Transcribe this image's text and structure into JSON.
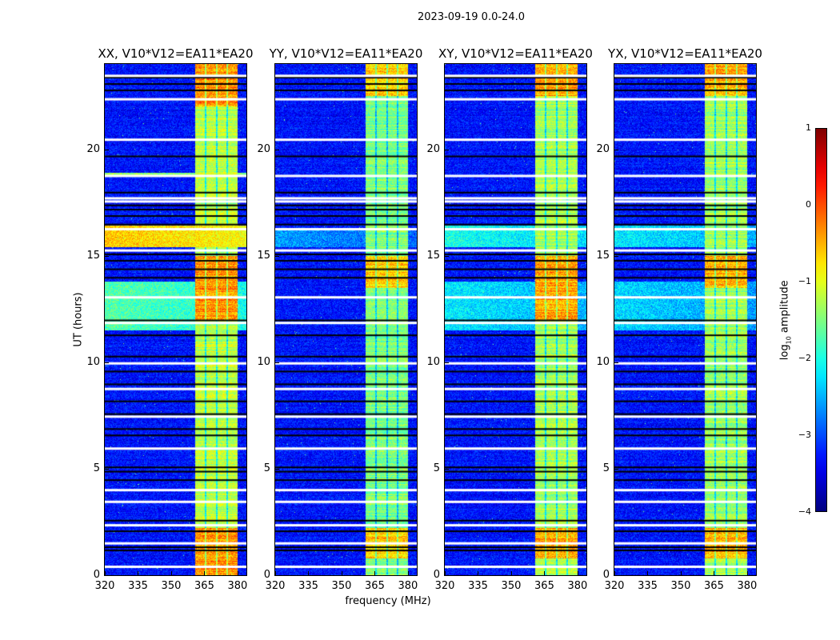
{
  "chart_data": {
    "type": "heatmap",
    "title": "2023-09-19 0.0-24.0",
    "xlabel": "frequency (MHz)",
    "ylabel": "UT (hours)",
    "xlim": [
      320,
      384
    ],
    "ylim": [
      0,
      24
    ],
    "xticks": [
      "320",
      "335",
      "350",
      "365",
      "380"
    ],
    "xtick_values": [
      320,
      335,
      350,
      365,
      380
    ],
    "yticks": [
      "0",
      "5",
      "10",
      "15",
      "20"
    ],
    "ytick_values": [
      0,
      5,
      10,
      15,
      20
    ],
    "colormap": "jet",
    "colorbar": {
      "label_main": "log",
      "label_sub": "10",
      "label_rest": " amplitude",
      "range": [
        -4,
        1
      ],
      "ticks": [
        "1",
        "0",
        "−1",
        "−2",
        "−3",
        "−4"
      ],
      "tick_values": [
        1,
        0,
        -1,
        -2,
        -3,
        -4
      ]
    },
    "background_level": -3.3,
    "band": {
      "start_mhz": 361,
      "end_mhz": 380,
      "gaps_mhz": [
        365.6,
        370.6,
        375.3
      ]
    },
    "flagged_white_hours": [
      0.45,
      1.55,
      2.4,
      3.5,
      4.05,
      6.0,
      7.5,
      8.8,
      10.0,
      11.9,
      13.1,
      15.3,
      16.3,
      17.6,
      17.75,
      18.8,
      20.5,
      22.4,
      23.5
    ],
    "flagged_black_hours": [
      1.2,
      1.35,
      2.1,
      2.6,
      4.5,
      4.9,
      5.1,
      6.6,
      6.9,
      7.6,
      8.2,
      9.0,
      9.6,
      10.3,
      11.3,
      12.0,
      14.0,
      14.4,
      14.8,
      15.1,
      16.5,
      16.9,
      17.2,
      17.4,
      18.0,
      19.7,
      22.8,
      23.1,
      23.4
    ],
    "panels": [
      {
        "title": "XX, V10*V12=EA11*EA20",
        "band_level": -1.2,
        "bright_hours": [
          [
            0,
            2.2
          ],
          [
            12,
            15
          ],
          [
            22,
            24
          ]
        ],
        "rfi": [
          [
            15.4,
            16.4,
            -0.6
          ],
          [
            11.5,
            13.8,
            -1.7
          ],
          [
            18.75,
            18.9,
            -1.3
          ]
        ]
      },
      {
        "title": "YY, V10*V12=EA11*EA20",
        "band_level": -1.5,
        "bright_hours": [
          [
            0.8,
            2.2
          ],
          [
            13.5,
            15
          ],
          [
            22.5,
            24
          ]
        ],
        "rfi": [
          [
            15.4,
            16.2,
            -2.6
          ]
        ]
      },
      {
        "title": "XY, V10*V12=EA11*EA20",
        "band_level": -1.3,
        "bright_hours": [
          [
            0.8,
            2.2
          ],
          [
            12,
            15
          ],
          [
            22.5,
            24
          ]
        ],
        "rfi": [
          [
            15.4,
            16.4,
            -2.0
          ],
          [
            11.5,
            13.8,
            -2.2
          ]
        ]
      },
      {
        "title": "YX, V10*V12=EA11*EA20",
        "band_level": -1.35,
        "bright_hours": [
          [
            0.8,
            2.2
          ],
          [
            13.5,
            15
          ],
          [
            22.5,
            24
          ]
        ],
        "rfi": [
          [
            15.4,
            16.4,
            -2.2
          ],
          [
            11.5,
            13.8,
            -2.3
          ]
        ]
      }
    ]
  }
}
